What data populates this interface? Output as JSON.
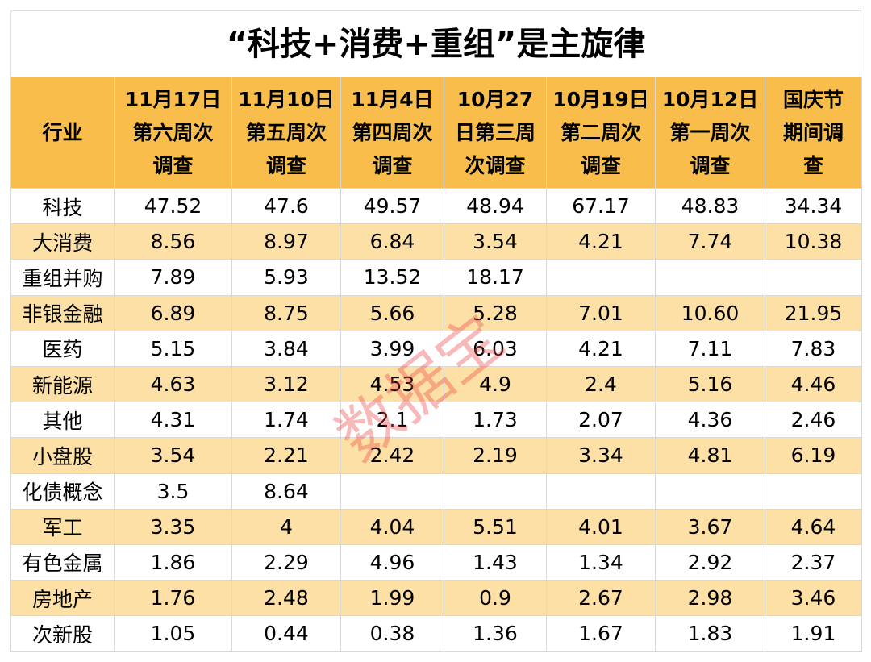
{
  "title": "“科技+消费+重组”是主旋律",
  "header": {
    "first": "行业",
    "columns": [
      [
        "11月17日",
        "第六周次",
        "调查"
      ],
      [
        "11月10日",
        "第五周次",
        "调查"
      ],
      [
        "11月4日",
        "第四周次",
        "调查"
      ],
      [
        "10月27",
        "日第三周",
        "次调查"
      ],
      [
        "10月19日",
        "第二周次",
        "调查"
      ],
      [
        "10月12日",
        "第一周次",
        "调查"
      ],
      [
        "国庆节",
        "期间调",
        "查"
      ]
    ]
  },
  "rows": [
    {
      "label": "科技",
      "values": [
        "47.52",
        "47.6",
        "49.57",
        "48.94",
        "67.17",
        "48.83",
        "34.34"
      ]
    },
    {
      "label": "大消费",
      "values": [
        "8.56",
        "8.97",
        "6.84",
        "3.54",
        "4.21",
        "7.74",
        "10.38"
      ]
    },
    {
      "label": "重组并购",
      "values": [
        "7.89",
        "5.93",
        "13.52",
        "18.17",
        null,
        null,
        null
      ]
    },
    {
      "label": "非银金融",
      "values": [
        "6.89",
        "8.75",
        "5.66",
        "5.28",
        "7.01",
        "10.60",
        "21.95"
      ]
    },
    {
      "label": "医药",
      "values": [
        "5.15",
        "3.84",
        "3.99",
        "6.03",
        "4.21",
        "7.11",
        "7.83"
      ]
    },
    {
      "label": "新能源",
      "values": [
        "4.63",
        "3.12",
        "4.53",
        "4.9",
        "2.4",
        "5.16",
        "4.46"
      ]
    },
    {
      "label": "其他",
      "values": [
        "4.31",
        "1.74",
        "2.1",
        "1.73",
        "2.07",
        "4.36",
        "2.46"
      ]
    },
    {
      "label": "小盘股",
      "values": [
        "3.54",
        "2.21",
        "2.42",
        "2.19",
        "3.34",
        "4.81",
        "6.19"
      ]
    },
    {
      "label": "化债概念",
      "values": [
        "3.5",
        "8.64",
        null,
        null,
        null,
        null,
        null
      ]
    },
    {
      "label": "军工",
      "values": [
        "3.35",
        "4",
        "4.04",
        "5.51",
        "4.01",
        "3.67",
        "4.64"
      ]
    },
    {
      "label": "有色金属",
      "values": [
        "1.86",
        "2.29",
        "4.96",
        "1.43",
        "1.34",
        "2.92",
        "2.37"
      ]
    },
    {
      "label": "房地产",
      "values": [
        "1.76",
        "2.48",
        "1.99",
        "0.9",
        "2.67",
        "2.98",
        "3.46"
      ]
    },
    {
      "label": "次新股",
      "values": [
        "1.05",
        "0.44",
        "0.38",
        "1.36",
        "1.67",
        "1.83",
        "1.91"
      ]
    }
  ],
  "watermark": "数据宝"
}
